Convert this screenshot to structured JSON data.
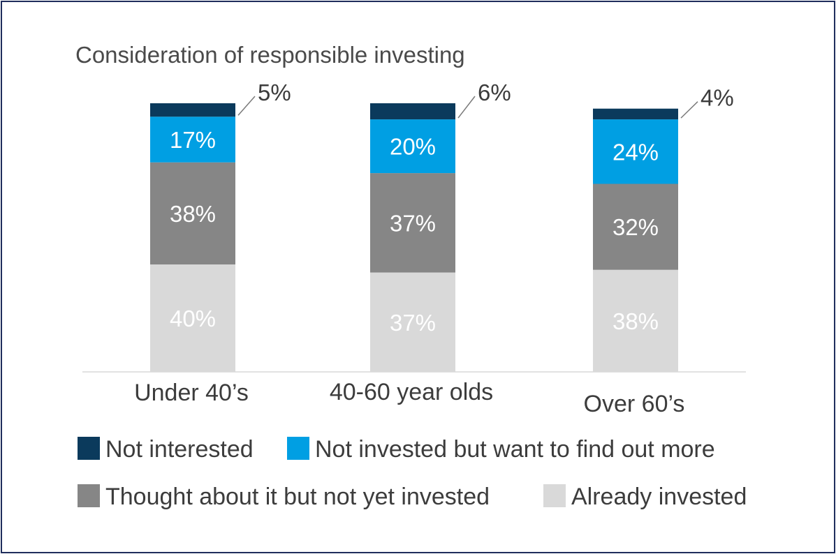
{
  "chart_data": {
    "type": "bar",
    "stacked": true,
    "title": "Consideration of responsible investing",
    "xlabel": "",
    "ylabel": "",
    "ylim": [
      0,
      100
    ],
    "grid": false,
    "legend_position": "bottom",
    "categories": [
      "Under 40’s",
      "40-60 year olds",
      "Over 60’s"
    ],
    "series": [
      {
        "name": "Already invested",
        "color": "#d9d9d9",
        "label_color": "#ffffff",
        "values": [
          40,
          37,
          38
        ],
        "labels": [
          "40%",
          "37%",
          "38%"
        ]
      },
      {
        "name": "Thought about it but not yet invested",
        "color": "#868686",
        "label_color": "#ffffff",
        "values": [
          38,
          37,
          32
        ],
        "labels": [
          "38%",
          "37%",
          "32%"
        ]
      },
      {
        "name": "Not invested but want to find out more",
        "color": "#009fe3",
        "label_color": "#ffffff",
        "values": [
          17,
          20,
          24
        ],
        "labels": [
          "17%",
          "20%",
          "24%"
        ]
      },
      {
        "name": "Not interested",
        "color": "#0b3a5c",
        "label_color": "#3c3c3c",
        "values": [
          5,
          6,
          4
        ],
        "labels": [
          "5%",
          "6%",
          "4%"
        ]
      }
    ],
    "legend_order": [
      "Not interested",
      "Not invested but want to find out more",
      "Thought about it but not yet invested",
      "Already invested"
    ]
  }
}
